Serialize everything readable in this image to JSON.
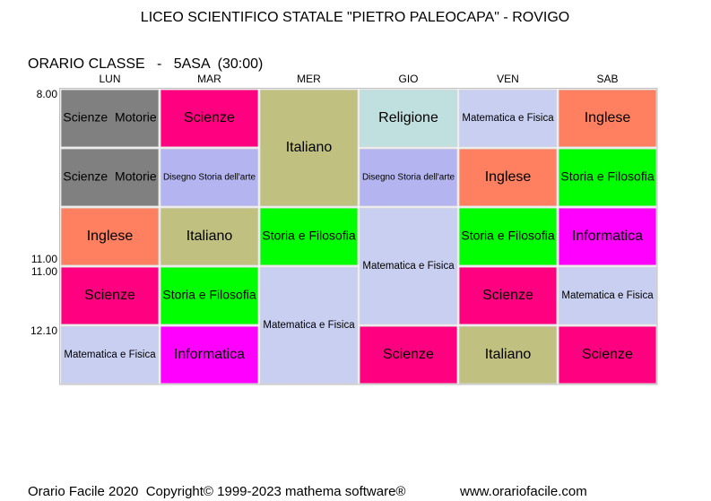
{
  "header": {
    "title": "LICEO SCIENTIFICO STATALE \"PIETRO PALEOCAPA\" - ROVIGO",
    "class_line": "ORARIO CLASSE   -   5ASA  (30:00)"
  },
  "timetable": {
    "days": [
      "LUN",
      "MAR",
      "MER",
      "GIO",
      "VEN",
      "SAB"
    ],
    "times": [
      {
        "label": "8.00",
        "row": 0,
        "edge": "top"
      },
      {
        "label": "11.00",
        "row": 2,
        "edge": "bottom"
      },
      {
        "label": "11.00",
        "row": 3,
        "edge": "top"
      },
      {
        "label": "12.10",
        "row": 4,
        "edge": "top"
      }
    ],
    "cells": [
      {
        "day": 0,
        "row": 0,
        "span": 1,
        "subject": "Scienze  Motorie",
        "color": "#808080",
        "text_color": "#000000"
      },
      {
        "day": 0,
        "row": 1,
        "span": 1,
        "subject": "Scienze  Motorie",
        "color": "#808080",
        "text_color": "#000000"
      },
      {
        "day": 0,
        "row": 2,
        "span": 1,
        "subject": "Inglese",
        "color": "#ff8060",
        "text_color": "#000000"
      },
      {
        "day": 0,
        "row": 3,
        "span": 1,
        "subject": "Scienze",
        "color": "#ff0080",
        "text_color": "#000000"
      },
      {
        "day": 0,
        "row": 4,
        "span": 1,
        "subject": "Matematica e Fisica",
        "color": "#c8cff0",
        "text_color": "#000000"
      },
      {
        "day": 1,
        "row": 0,
        "span": 1,
        "subject": "Scienze",
        "color": "#ff0080",
        "text_color": "#000000"
      },
      {
        "day": 1,
        "row": 1,
        "span": 1,
        "subject": "Disegno Storia dell'arte",
        "color": "#b4b4f0",
        "text_color": "#000000"
      },
      {
        "day": 1,
        "row": 2,
        "span": 1,
        "subject": "Italiano",
        "color": "#c0c080",
        "text_color": "#000000"
      },
      {
        "day": 1,
        "row": 3,
        "span": 1,
        "subject": "Storia e Filosofia",
        "color": "#00ff00",
        "text_color": "#000000"
      },
      {
        "day": 1,
        "row": 4,
        "span": 1,
        "subject": "Informatica",
        "color": "#ff00ff",
        "text_color": "#ffffff"
      },
      {
        "day": 2,
        "row": 0,
        "span": 2,
        "subject": "Italiano",
        "color": "#c0c080",
        "text_color": "#000000"
      },
      {
        "day": 2,
        "row": 2,
        "span": 1,
        "subject": "Storia e Filosofia",
        "color": "#00ff00",
        "text_color": "#000000"
      },
      {
        "day": 2,
        "row": 3,
        "span": 2,
        "subject": "Matematica e Fisica",
        "color": "#c8cff0",
        "text_color": "#000000"
      },
      {
        "day": 3,
        "row": 0,
        "span": 1,
        "subject": "Religione",
        "color": "#c0e0e0",
        "text_color": "#000000"
      },
      {
        "day": 3,
        "row": 1,
        "span": 1,
        "subject": "Disegno Storia dell'arte",
        "color": "#b4b4f0",
        "text_color": "#000000"
      },
      {
        "day": 3,
        "row": 2,
        "span": 2,
        "subject": "Matematica e Fisica",
        "color": "#c8cff0",
        "text_color": "#000000"
      },
      {
        "day": 3,
        "row": 4,
        "span": 1,
        "subject": "Scienze",
        "color": "#ff0080",
        "text_color": "#000000"
      },
      {
        "day": 4,
        "row": 0,
        "span": 1,
        "subject": "Matematica e Fisica",
        "color": "#c8cff0",
        "text_color": "#000000"
      },
      {
        "day": 4,
        "row": 1,
        "span": 1,
        "subject": "Inglese",
        "color": "#ff8060",
        "text_color": "#000000"
      },
      {
        "day": 4,
        "row": 2,
        "span": 1,
        "subject": "Storia e Filosofia",
        "color": "#00ff00",
        "text_color": "#000000"
      },
      {
        "day": 4,
        "row": 3,
        "span": 1,
        "subject": "Scienze",
        "color": "#ff0080",
        "text_color": "#000000"
      },
      {
        "day": 4,
        "row": 4,
        "span": 1,
        "subject": "Italiano",
        "color": "#c0c080",
        "text_color": "#000000"
      },
      {
        "day": 5,
        "row": 0,
        "span": 1,
        "subject": "Inglese",
        "color": "#ff8060",
        "text_color": "#000000"
      },
      {
        "day": 5,
        "row": 1,
        "span": 1,
        "subject": "Storia e Filosofia",
        "color": "#00ff00",
        "text_color": "#000000"
      },
      {
        "day": 5,
        "row": 2,
        "span": 1,
        "subject": "Informatica",
        "color": "#ff00ff",
        "text_color": "#ffffff"
      },
      {
        "day": 5,
        "row": 3,
        "span": 1,
        "subject": "Matematica e Fisica",
        "color": "#c8cff0",
        "text_color": "#000000"
      },
      {
        "day": 5,
        "row": 4,
        "span": 1,
        "subject": "Scienze",
        "color": "#ff0080",
        "text_color": "#000000"
      }
    ]
  },
  "footer": {
    "copyright": "Orario Facile 2020  Copyright© 1999-2023 mathema software®",
    "website": "www.orariofacile.com"
  }
}
